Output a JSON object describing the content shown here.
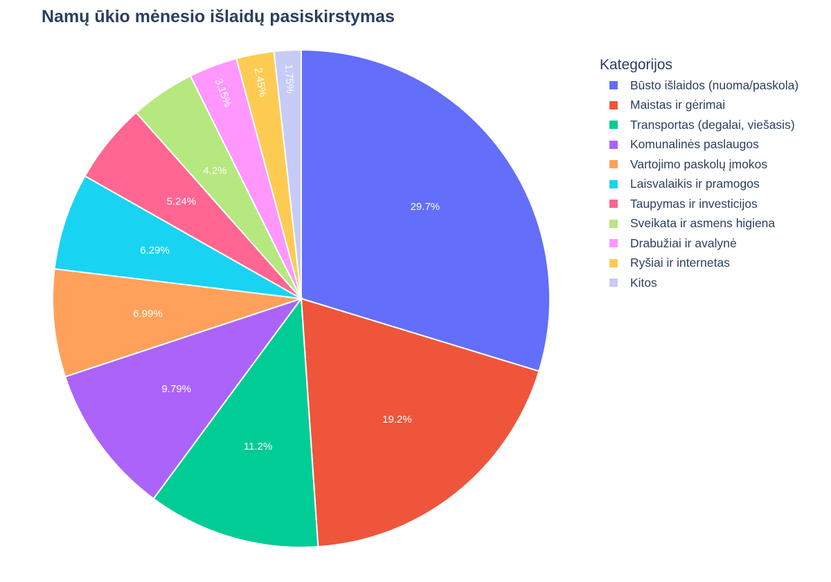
{
  "chart_data": {
    "type": "pie",
    "title": "Namų ūkio mėnesio išlaidų pasiskirstymas",
    "legend_title": "Kategorijos",
    "legend_position": "right",
    "direction": "clockwise",
    "start_angle_deg": 0,
    "slices": [
      {
        "label": "Būsto išlaidos (nuoma/paskola)",
        "value": 29.7,
        "text": "29.7%",
        "color": "#636efa"
      },
      {
        "label": "Maistas ir gėrimai",
        "value": 19.2,
        "text": "19.2%",
        "color": "#ef553b"
      },
      {
        "label": "Transportas (degalai, viešasis)",
        "value": 11.2,
        "text": "11.2%",
        "color": "#00cc96"
      },
      {
        "label": "Komunalinės paslaugos",
        "value": 9.79,
        "text": "9.79%",
        "color": "#ab63fa"
      },
      {
        "label": "Vartojimo paskolų įmokos",
        "value": 6.99,
        "text": "6.99%",
        "color": "#ffa15a"
      },
      {
        "label": "Laisvalaikis ir pramogos",
        "value": 6.29,
        "text": "6.29%",
        "color": "#19d3f3"
      },
      {
        "label": "Taupymas ir investicijos",
        "value": 5.24,
        "text": "5.24%",
        "color": "#ff6692"
      },
      {
        "label": "Sveikata ir asmens higiena",
        "value": 4.2,
        "text": "4.2%",
        "color": "#b6e880"
      },
      {
        "label": "Drabužiai ir avalynė",
        "value": 3.15,
        "text": "3.15%",
        "color": "#ff97ff"
      },
      {
        "label": "Ryšiai ir internetas",
        "value": 2.45,
        "text": "2.45%",
        "color": "#fecb52"
      },
      {
        "label": "Kitos",
        "value": 1.75,
        "text": "1.75%",
        "color": "#c6cbf7"
      }
    ]
  }
}
